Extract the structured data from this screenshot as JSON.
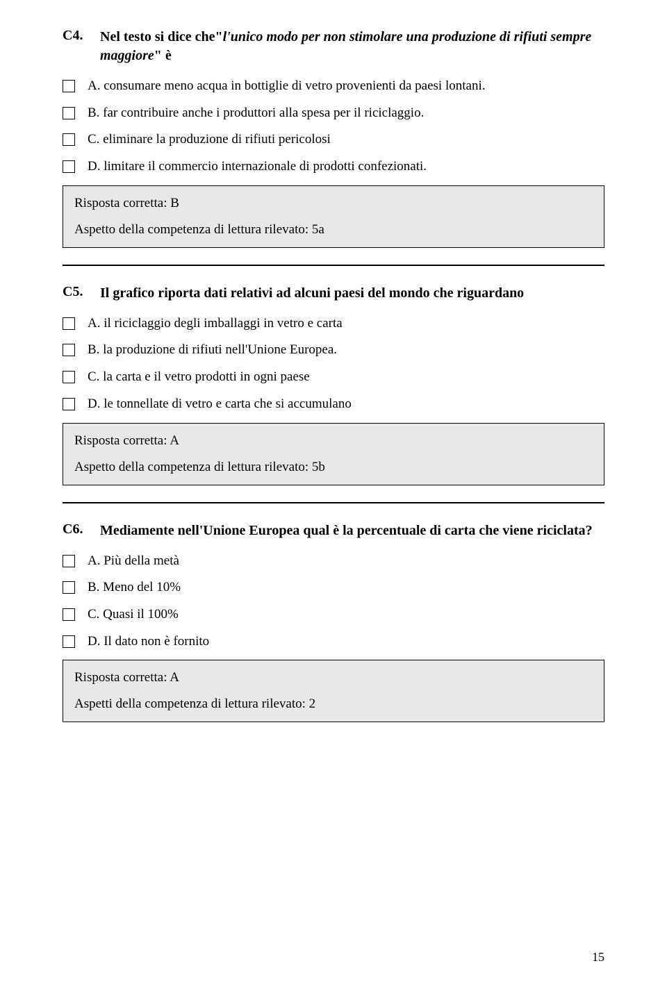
{
  "questions": [
    {
      "num": "C4.",
      "text_html": "Nel testo si dice che\"<em>l'unico modo per non stimolare una produzione di rifiuti sempre maggiore</em>\" è",
      "options": [
        "A. consumare meno acqua in bottiglie di vetro provenienti da paesi lontani.",
        "B. far contribuire anche i produttori alla spesa per il riciclaggio.",
        "C. eliminare la produzione di rifiuti pericolosi",
        "D. limitare il commercio internazionale di prodotti confezionati."
      ],
      "answer": {
        "correct": "Risposta corretta: B",
        "aspect": "Aspetto della competenza di lettura rilevato: 5a"
      },
      "divider_after": true
    },
    {
      "num": "C5.",
      "text_html": "Il grafico riporta dati relativi ad alcuni paesi del mondo che riguardano",
      "options": [
        "A. il riciclaggio degli imballaggi in vetro e carta",
        "B. la produzione di rifiuti nell'Unione Europea.",
        "C. la carta e il vetro prodotti in ogni paese",
        "D. le tonnellate di vetro e carta che si accumulano"
      ],
      "answer": {
        "correct": "Risposta corretta: A",
        "aspect": "Aspetto della competenza di lettura rilevato: 5b"
      },
      "divider_after": true
    },
    {
      "num": "C6.",
      "text_html": "Mediamente nell'Unione Europea qual è la percentuale di carta che viene riciclata?",
      "options": [
        "A. Più della metà",
        "B. Meno del 10%",
        "C. Quasi il 100%",
        "D. Il dato non è fornito"
      ],
      "answer": {
        "correct": "Risposta corretta: A",
        "aspect": "Aspetti della competenza di lettura rilevato: 2"
      },
      "divider_after": false
    }
  ],
  "page_number": "15"
}
